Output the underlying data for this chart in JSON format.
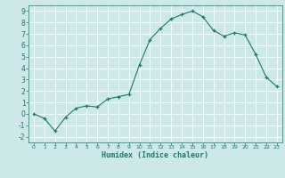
{
  "x": [
    0,
    1,
    2,
    3,
    4,
    5,
    6,
    7,
    8,
    9,
    10,
    11,
    12,
    13,
    14,
    15,
    16,
    17,
    18,
    19,
    20,
    21,
    22,
    23
  ],
  "y": [
    0.0,
    -0.4,
    -1.5,
    -0.3,
    0.5,
    0.7,
    0.6,
    1.3,
    1.5,
    1.7,
    4.3,
    6.5,
    7.5,
    8.3,
    8.7,
    9.0,
    8.5,
    7.3,
    6.8,
    7.1,
    6.9,
    5.2,
    3.2,
    2.4
  ],
  "xlabel": "Humidex (Indice chaleur)",
  "xlim": [
    -0.5,
    23.5
  ],
  "ylim": [
    -2.5,
    9.5
  ],
  "yticks": [
    -2,
    -1,
    0,
    1,
    2,
    3,
    4,
    5,
    6,
    7,
    8,
    9
  ],
  "xticks": [
    0,
    1,
    2,
    3,
    4,
    5,
    6,
    7,
    8,
    9,
    10,
    11,
    12,
    13,
    14,
    15,
    16,
    17,
    18,
    19,
    20,
    21,
    22,
    23
  ],
  "line_color": "#1a7a6e",
  "bg_color": "#cde8e8",
  "grid_color": "#ffffff"
}
